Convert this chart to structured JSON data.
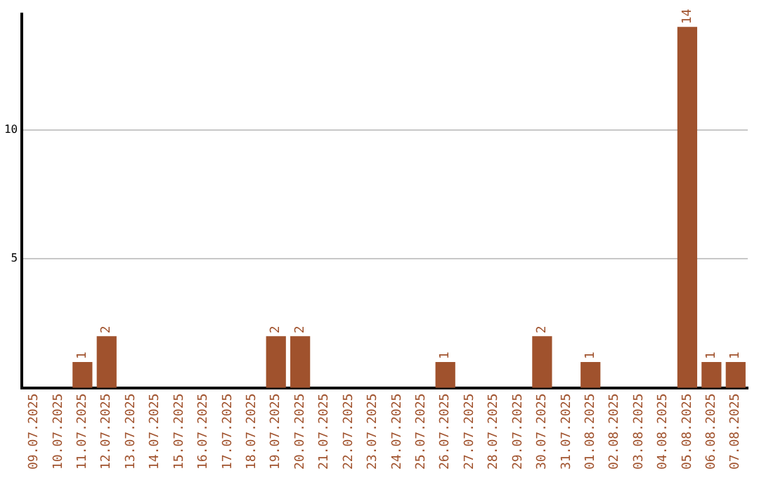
{
  "chart_data": {
    "type": "bar",
    "categories": [
      "09.07.2025",
      "10.07.2025",
      "11.07.2025",
      "12.07.2025",
      "13.07.2025",
      "14.07.2025",
      "15.07.2025",
      "16.07.2025",
      "17.07.2025",
      "18.07.2025",
      "19.07.2025",
      "20.07.2025",
      "21.07.2025",
      "22.07.2025",
      "23.07.2025",
      "24.07.2025",
      "25.07.2025",
      "26.07.2025",
      "27.07.2025",
      "28.07.2025",
      "29.07.2025",
      "30.07.2025",
      "31.07.2025",
      "01.08.2025",
      "02.08.2025",
      "03.08.2025",
      "04.08.2025",
      "05.08.2025",
      "06.08.2025",
      "07.08.2025"
    ],
    "values": [
      0,
      0,
      1,
      2,
      0,
      0,
      0,
      0,
      0,
      0,
      2,
      2,
      0,
      0,
      0,
      0,
      0,
      1,
      0,
      0,
      0,
      2,
      0,
      1,
      0,
      0,
      0,
      14,
      1,
      1
    ],
    "value_labels": [
      null,
      null,
      "1",
      "2",
      null,
      null,
      null,
      null,
      null,
      null,
      "2",
      "2",
      null,
      null,
      null,
      null,
      null,
      "1",
      null,
      null,
      null,
      "2",
      null,
      "1",
      null,
      null,
      null,
      "14",
      "1",
      "1"
    ],
    "color": "#a0522d",
    "ylim": [
      0,
      14.5
    ],
    "yticks": [
      5,
      10
    ],
    "grid": "y",
    "legend": false
  }
}
